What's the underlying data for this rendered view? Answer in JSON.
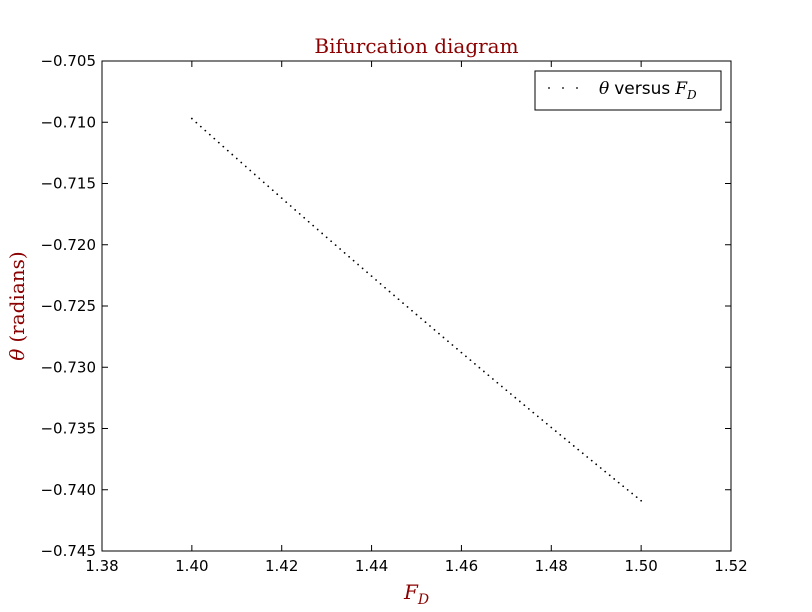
{
  "chart_data": {
    "type": "scatter",
    "title": "Bifurcation diagram",
    "xlabel": {
      "symbol": "F",
      "subscript": "D"
    },
    "ylabel": {
      "symbol": "θ",
      "text": "(radians)"
    },
    "xlim": [
      1.38,
      1.52
    ],
    "ylim": [
      -0.745,
      -0.705
    ],
    "x_ticks": [
      1.38,
      1.4,
      1.42,
      1.44,
      1.46,
      1.48,
      1.5,
      1.52
    ],
    "x_tick_labels": [
      "1.38",
      "1.40",
      "1.42",
      "1.44",
      "1.46",
      "1.48",
      "1.50",
      "1.52"
    ],
    "y_ticks": [
      -0.705,
      -0.71,
      -0.715,
      -0.72,
      -0.725,
      -0.73,
      -0.735,
      -0.74,
      -0.745
    ],
    "y_tick_labels": [
      "−0.705",
      "−0.710",
      "−0.715",
      "−0.720",
      "−0.725",
      "−0.730",
      "−0.735",
      "−0.740",
      "−0.745"
    ],
    "legend": {
      "position": "top-right",
      "symbol": "θ",
      "text": "versus",
      "subscript_symbol": "F",
      "subscript": "D"
    },
    "series": [
      {
        "marker": "dot",
        "color": "#000000",
        "x_start": 1.4,
        "x_end": 1.5,
        "count": 101,
        "y_start": -0.7097,
        "y_end": -0.7409,
        "curvature": 0.0004
      }
    ],
    "colors": {
      "accent": "#8b0000",
      "text": "#000000",
      "background": "#ffffff"
    }
  }
}
